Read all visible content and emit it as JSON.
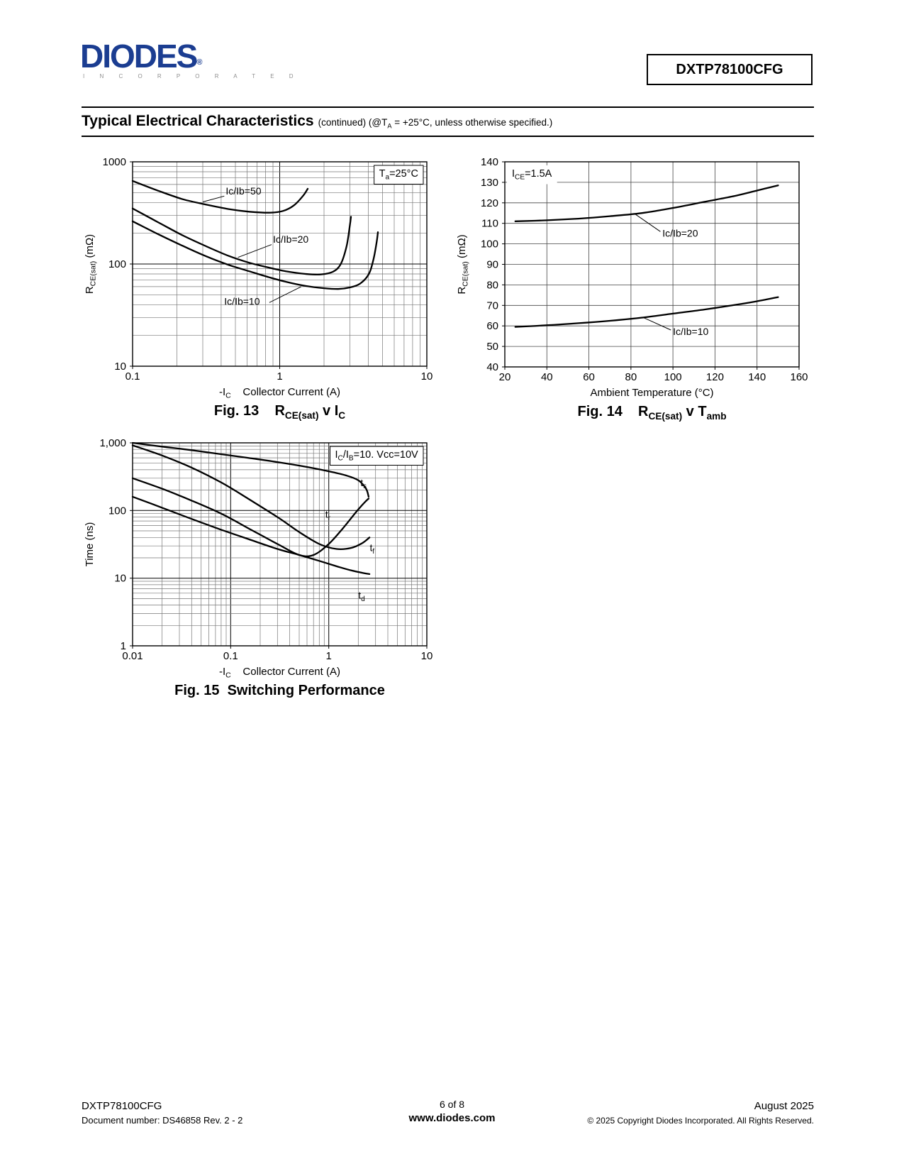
{
  "header": {
    "logo": {
      "name": "DIODES",
      "registered": "®",
      "sub": "I N C O R P O R A T E D"
    },
    "part_number": "DXTP78100CFG"
  },
  "section": {
    "title": "Typical Electrical Characteristics",
    "subtitle": "(continued) (@T~A~ = +25°C, unless otherwise specified.)"
  },
  "chart_data": [
    {
      "id": "fig13",
      "type": "line",
      "caption": "Fig. 13    R~CE(sat)~ v I~C~",
      "xlabel": "-I~C~    Collector Current (A)",
      "ylabel": "R~CE(sat)~ (mΩ)",
      "xscale": "log",
      "yscale": "log",
      "xlim": [
        0.1,
        10
      ],
      "ylim": [
        10,
        1000
      ],
      "xticks": [
        {
          "v": 0.1,
          "t": "0.1"
        },
        {
          "v": 1,
          "t": "1"
        },
        {
          "v": 10,
          "t": "10"
        }
      ],
      "yticks": [
        {
          "v": 10,
          "t": "10"
        },
        {
          "v": 100,
          "t": "100"
        },
        {
          "v": 1000,
          "t": "1000"
        }
      ],
      "annotation": {
        "text": "T~a~=25°C",
        "corner": "tr",
        "boxed": true
      },
      "series": [
        {
          "name": "Ic/Ib=50",
          "points": [
            [
              0.1,
              650
            ],
            [
              0.15,
              520
            ],
            [
              0.22,
              430
            ],
            [
              0.32,
              380
            ],
            [
              0.45,
              345
            ],
            [
              0.62,
              325
            ],
            [
              0.85,
              318
            ],
            [
              1.05,
              330
            ],
            [
              1.25,
              375
            ],
            [
              1.45,
              470
            ],
            [
              1.55,
              545
            ]
          ]
        },
        {
          "name": "Ic/Ib=20",
          "points": [
            [
              0.1,
              350
            ],
            [
              0.15,
              255
            ],
            [
              0.22,
              190
            ],
            [
              0.32,
              148
            ],
            [
              0.45,
              120
            ],
            [
              0.62,
              103
            ],
            [
              0.85,
              92
            ],
            [
              1.1,
              85
            ],
            [
              1.5,
              80
            ],
            [
              1.9,
              79
            ],
            [
              2.3,
              84
            ],
            [
              2.6,
              100
            ],
            [
              2.85,
              150
            ],
            [
              3.0,
              240
            ],
            [
              3.05,
              290
            ]
          ]
        },
        {
          "name": "Ic/Ib=10",
          "points": [
            [
              0.1,
              262
            ],
            [
              0.15,
              195
            ],
            [
              0.22,
              150
            ],
            [
              0.32,
              118
            ],
            [
              0.45,
              98
            ],
            [
              0.62,
              85
            ],
            [
              0.85,
              74
            ],
            [
              1.1,
              67
            ],
            [
              1.5,
              61
            ],
            [
              2.0,
              58
            ],
            [
              2.5,
              57
            ],
            [
              3.0,
              59
            ],
            [
              3.5,
              64
            ],
            [
              4.0,
              78
            ],
            [
              4.3,
              105
            ],
            [
              4.55,
              160
            ],
            [
              4.65,
              205
            ]
          ]
        }
      ],
      "labels": [
        {
          "text": "Ic/Ib=50",
          "x": 0.43,
          "y": 480,
          "leader": [
            [
              0.42,
              462
            ],
            [
              0.3,
              405
            ]
          ]
        },
        {
          "text": "Ic/Ib=20",
          "x": 0.9,
          "y": 162,
          "leader": [
            [
              0.88,
              155
            ],
            [
              0.52,
              116
            ]
          ]
        },
        {
          "text": "Ic/Ib=10",
          "x": 0.42,
          "y": 40,
          "leader": [
            [
              0.85,
              42
            ],
            [
              1.4,
              60
            ]
          ]
        }
      ]
    },
    {
      "id": "fig14",
      "type": "line",
      "caption": "Fig. 14    R~CE(sat)~ v T~amb~",
      "xlabel": "Ambient Temperature (°C)",
      "ylabel": "R~CE(sat)~ (mΩ)",
      "xscale": "linear",
      "yscale": "linear",
      "xlim": [
        20,
        160
      ],
      "ylim": [
        40,
        140
      ],
      "xticks": [
        {
          "v": 20,
          "t": "20"
        },
        {
          "v": 40,
          "t": "40"
        },
        {
          "v": 60,
          "t": "60"
        },
        {
          "v": 80,
          "t": "80"
        },
        {
          "v": 100,
          "t": "100"
        },
        {
          "v": 120,
          "t": "120"
        },
        {
          "v": 140,
          "t": "140"
        },
        {
          "v": 160,
          "t": "160"
        }
      ],
      "yticks": [
        {
          "v": 40,
          "t": "40"
        },
        {
          "v": 50,
          "t": "50"
        },
        {
          "v": 60,
          "t": "60"
        },
        {
          "v": 70,
          "t": "70"
        },
        {
          "v": 80,
          "t": "80"
        },
        {
          "v": 90,
          "t": "90"
        },
        {
          "v": 100,
          "t": "100"
        },
        {
          "v": 110,
          "t": "110"
        },
        {
          "v": 120,
          "t": "120"
        },
        {
          "v": 130,
          "t": "130"
        },
        {
          "v": 140,
          "t": "140"
        }
      ],
      "annotation": {
        "text": "I~CE~=1.5A",
        "corner": "tl",
        "boxed": false
      },
      "series": [
        {
          "name": "Ic/Ib=20",
          "points": [
            [
              25,
              111
            ],
            [
              40,
              111.5
            ],
            [
              55,
              112.3
            ],
            [
              70,
              113.5
            ],
            [
              85,
              115
            ],
            [
              100,
              117.5
            ],
            [
              115,
              120.5
            ],
            [
              130,
              123.5
            ],
            [
              140,
              126
            ],
            [
              150,
              128.5
            ]
          ]
        },
        {
          "name": "Ic/Ib=10",
          "points": [
            [
              25,
              59.5
            ],
            [
              40,
              60.3
            ],
            [
              55,
              61.3
            ],
            [
              70,
              62.5
            ],
            [
              85,
              64
            ],
            [
              100,
              66
            ],
            [
              115,
              68
            ],
            [
              130,
              70.3
            ],
            [
              140,
              72
            ],
            [
              150,
              74
            ]
          ]
        }
      ],
      "labels": [
        {
          "text": "Ic/Ib=20",
          "x": 95,
          "y": 103.5,
          "leader": [
            [
              94,
              106
            ],
            [
              82,
              114.5
            ]
          ]
        },
        {
          "text": "Ic/Ib=10",
          "x": 100,
          "y": 55.5,
          "leader": [
            [
              99,
              58
            ],
            [
              86,
              64
            ]
          ]
        }
      ]
    },
    {
      "id": "fig15",
      "type": "line",
      "caption": "Fig. 15  Switching Performance",
      "xlabel": "-I~C~    Collector Current (A)",
      "ylabel": "Time (ns)",
      "xscale": "log",
      "yscale": "log",
      "xlim": [
        0.01,
        10
      ],
      "ylim": [
        1,
        1000
      ],
      "xticks": [
        {
          "v": 0.01,
          "t": "0.01"
        },
        {
          "v": 0.1,
          "t": "0.1"
        },
        {
          "v": 1,
          "t": "1"
        },
        {
          "v": 10,
          "t": "10"
        }
      ],
      "yticks": [
        {
          "v": 1,
          "t": "1"
        },
        {
          "v": 10,
          "t": "10"
        },
        {
          "v": 100,
          "t": "100"
        },
        {
          "v": 1000,
          "t": "1,000"
        }
      ],
      "annotation": {
        "text": "I~C~/I~B~=10. Vcc=10V",
        "corner": "tr",
        "boxed": true
      },
      "series": [
        {
          "name": "ts",
          "points": [
            [
              0.01,
              1000
            ],
            [
              0.02,
              880
            ],
            [
              0.04,
              780
            ],
            [
              0.08,
              680
            ],
            [
              0.15,
              600
            ],
            [
              0.3,
              520
            ],
            [
              0.6,
              440
            ],
            [
              1.0,
              380
            ],
            [
              1.5,
              330
            ],
            [
              2.0,
              280
            ],
            [
              2.4,
              210
            ],
            [
              2.55,
              160
            ]
          ]
        },
        {
          "name": "tr",
          "points": [
            [
              0.01,
              300
            ],
            [
              0.02,
              210
            ],
            [
              0.04,
              140
            ],
            [
              0.08,
              90
            ],
            [
              0.15,
              55
            ],
            [
              0.3,
              32
            ],
            [
              0.5,
              22
            ],
            [
              0.7,
              22
            ],
            [
              1.0,
              32
            ],
            [
              1.4,
              55
            ],
            [
              1.9,
              95
            ],
            [
              2.3,
              130
            ],
            [
              2.55,
              150
            ]
          ]
        },
        {
          "name": "tf",
          "points": [
            [
              0.01,
              920
            ],
            [
              0.02,
              650
            ],
            [
              0.04,
              430
            ],
            [
              0.08,
              260
            ],
            [
              0.15,
              150
            ],
            [
              0.3,
              80
            ],
            [
              0.5,
              48
            ],
            [
              0.8,
              32
            ],
            [
              1.2,
              27
            ],
            [
              1.7,
              28
            ],
            [
              2.2,
              33
            ],
            [
              2.6,
              40
            ]
          ]
        },
        {
          "name": "td",
          "points": [
            [
              0.01,
              160
            ],
            [
              0.02,
              110
            ],
            [
              0.04,
              75
            ],
            [
              0.08,
              52
            ],
            [
              0.15,
              38
            ],
            [
              0.3,
              27
            ],
            [
              0.5,
              22
            ],
            [
              0.8,
              18
            ],
            [
              1.2,
              15
            ],
            [
              1.7,
              13
            ],
            [
              2.2,
              12
            ],
            [
              2.6,
              11.5
            ]
          ]
        }
      ],
      "labels": [
        {
          "text": "t~s~",
          "x": 2.1,
          "y": 230
        },
        {
          "text": "t~r~",
          "x": 0.92,
          "y": 78
        },
        {
          "text": "t~f~",
          "x": 2.62,
          "y": 25
        },
        {
          "text": "t~d~",
          "x": 2.0,
          "y": 5
        }
      ]
    }
  ],
  "footer": {
    "part": "DXTP78100CFG",
    "doc": "Document number: DS46858 Rev. 2 - 2",
    "page": "6 of 8",
    "site": "www.diodes.com",
    "date": "August 2025",
    "copyright": "© 2025 Copyright Diodes Incorporated. All Rights Reserved."
  }
}
